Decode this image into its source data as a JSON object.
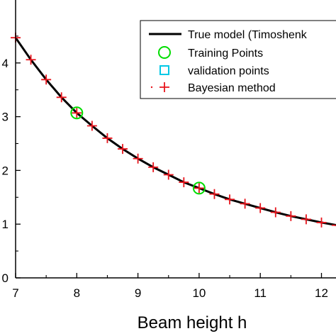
{
  "chart_data": {
    "type": "line",
    "xlabel": "Beam height h",
    "ylabel": "",
    "xlim": [
      7,
      12.25
    ],
    "ylim": [
      0,
      5
    ],
    "x_ticks": [
      "7",
      "8",
      "9",
      "10",
      "11",
      "12"
    ],
    "x_tick_values": [
      7,
      8,
      9,
      10,
      11,
      12
    ],
    "y_ticks": [
      "0",
      "1",
      "2",
      "3",
      "4"
    ],
    "y_tick_values": [
      0,
      1,
      2,
      3,
      4
    ],
    "grid": false,
    "legend_position": "top-right",
    "series": [
      {
        "name": "True model (Timoshenk",
        "kind": "line",
        "color": "#000000",
        "x": [
          7,
          7.25,
          7.5,
          7.75,
          8,
          8.25,
          8.5,
          8.75,
          9,
          9.25,
          9.5,
          9.75,
          10,
          10.25,
          10.5,
          10.75,
          11,
          11.25,
          11.5,
          11.75,
          12,
          12.25
        ],
        "y": [
          4.47,
          4.06,
          3.69,
          3.36,
          3.07,
          2.83,
          2.6,
          2.4,
          2.22,
          2.06,
          1.92,
          1.78,
          1.67,
          1.56,
          1.46,
          1.38,
          1.3,
          1.22,
          1.15,
          1.09,
          1.03,
          0.98
        ]
      },
      {
        "name": "Training Points",
        "kind": "circle",
        "color": "#00dd00",
        "x": [
          8,
          10
        ],
        "y": [
          3.07,
          1.67
        ]
      },
      {
        "name": "validation points",
        "kind": "square",
        "color": "#00c8e6",
        "x": [],
        "y": []
      },
      {
        "name": "Bayesian method",
        "kind": "plus",
        "color": "#e8141c",
        "x": [
          7,
          7.25,
          7.5,
          7.75,
          8,
          8.25,
          8.5,
          8.75,
          9,
          9.25,
          9.5,
          9.75,
          10,
          10.25,
          10.5,
          10.75,
          11,
          11.25,
          11.5,
          11.75,
          12,
          12.25
        ],
        "y": [
          4.47,
          4.06,
          3.69,
          3.36,
          3.07,
          2.83,
          2.6,
          2.4,
          2.22,
          2.06,
          1.92,
          1.78,
          1.67,
          1.56,
          1.46,
          1.38,
          1.3,
          1.22,
          1.15,
          1.09,
          1.03,
          0.98
        ]
      }
    ]
  }
}
